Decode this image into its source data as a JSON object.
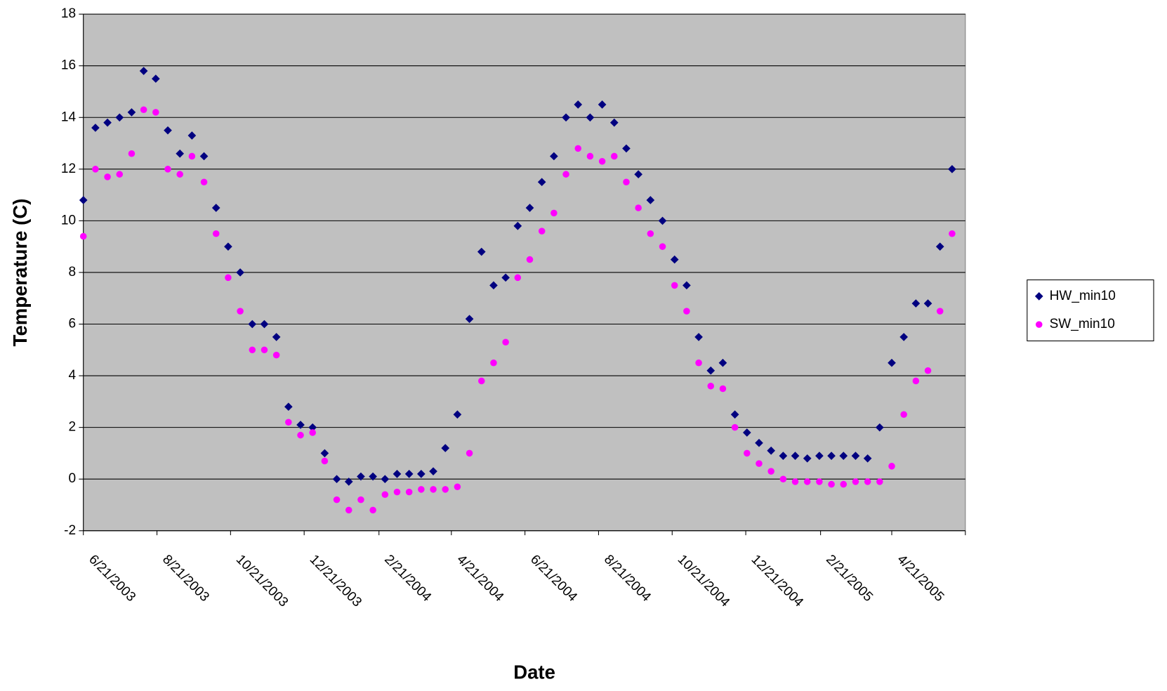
{
  "chart_data": {
    "type": "scatter",
    "x_label": "Date",
    "y_label": "Temperature (C)",
    "x": [
      "2003-06-21",
      "2003-07-01",
      "2003-07-11",
      "2003-07-21",
      "2003-07-31",
      "2003-08-10",
      "2003-08-20",
      "2003-08-30",
      "2003-09-09",
      "2003-09-19",
      "2003-09-29",
      "2003-10-09",
      "2003-10-19",
      "2003-10-29",
      "2003-11-08",
      "2003-11-18",
      "2003-11-28",
      "2003-12-08",
      "2003-12-18",
      "2003-12-28",
      "2004-01-07",
      "2004-01-17",
      "2004-01-27",
      "2004-02-06",
      "2004-02-16",
      "2004-02-26",
      "2004-03-07",
      "2004-03-17",
      "2004-03-27",
      "2004-04-06",
      "2004-04-16",
      "2004-04-26",
      "2004-05-06",
      "2004-05-16",
      "2004-05-26",
      "2004-06-05",
      "2004-06-15",
      "2004-06-25",
      "2004-07-05",
      "2004-07-15",
      "2004-07-25",
      "2004-08-04",
      "2004-08-14",
      "2004-08-24",
      "2004-09-03",
      "2004-09-13",
      "2004-09-23",
      "2004-10-03",
      "2004-10-13",
      "2004-10-23",
      "2004-11-02",
      "2004-11-12",
      "2004-11-22",
      "2004-12-02",
      "2004-12-12",
      "2004-12-22",
      "2005-01-01",
      "2005-01-11",
      "2005-01-21",
      "2005-01-31",
      "2005-02-10",
      "2005-02-20",
      "2005-03-02",
      "2005-03-12",
      "2005-03-22",
      "2005-04-01",
      "2005-04-11",
      "2005-04-21",
      "2005-05-01",
      "2005-05-11",
      "2005-05-21",
      "2005-05-31",
      "2005-06-10"
    ],
    "series": [
      {
        "name": "HW_min10",
        "color": "#000080",
        "marker": "diamond",
        "values": [
          10.8,
          13.6,
          13.8,
          14.0,
          14.2,
          15.8,
          15.5,
          13.5,
          12.6,
          13.3,
          12.5,
          10.5,
          9.0,
          8.0,
          6.0,
          6.0,
          5.5,
          2.8,
          2.1,
          2.0,
          1.0,
          0.0,
          -0.1,
          0.1,
          0.1,
          0.0,
          0.2,
          0.2,
          0.2,
          0.3,
          1.2,
          2.5,
          6.2,
          8.8,
          7.5,
          7.8,
          9.8,
          10.5,
          11.5,
          12.5,
          14.0,
          14.5,
          14.0,
          14.5,
          13.8,
          12.8,
          11.8,
          10.8,
          10.0,
          8.5,
          7.5,
          5.5,
          4.2,
          4.5,
          2.5,
          1.8,
          1.4,
          1.1,
          0.9,
          0.9,
          0.8,
          0.9,
          0.9,
          0.9,
          0.9,
          0.8,
          2.0,
          4.5,
          5.5,
          6.8,
          6.8,
          9.0,
          12.0
        ]
      },
      {
        "name": "SW_min10",
        "color": "#ff00ff",
        "marker": "circle",
        "values": [
          9.4,
          12.0,
          11.7,
          11.8,
          12.6,
          14.3,
          14.2,
          12.0,
          11.8,
          12.5,
          11.5,
          9.5,
          7.8,
          6.5,
          5.0,
          5.0,
          4.8,
          2.2,
          1.7,
          1.8,
          0.7,
          -0.8,
          -1.2,
          -0.8,
          -1.2,
          -0.6,
          -0.5,
          -0.5,
          -0.4,
          -0.4,
          -0.4,
          -0.3,
          1.0,
          3.8,
          4.5,
          5.3,
          7.8,
          8.5,
          9.6,
          10.3,
          11.8,
          12.8,
          12.5,
          12.3,
          12.5,
          11.5,
          10.5,
          9.5,
          9.0,
          7.5,
          6.5,
          4.5,
          3.6,
          3.5,
          2.0,
          1.0,
          0.6,
          0.3,
          0.0,
          -0.1,
          -0.1,
          -0.1,
          -0.2,
          -0.2,
          -0.1,
          -0.1,
          -0.1,
          0.5,
          2.5,
          3.8,
          4.2,
          6.5,
          9.5
        ]
      }
    ],
    "xlim": [
      "2003-06-21",
      "2005-06-21"
    ],
    "xticks": [
      {
        "value": "2003-06-21",
        "label": "6/21/2003"
      },
      {
        "value": "2003-08-21",
        "label": "8/21/2003"
      },
      {
        "value": "2003-10-21",
        "label": "10/21/2003"
      },
      {
        "value": "2003-12-21",
        "label": "12/21/2003"
      },
      {
        "value": "2004-02-21",
        "label": "2/21/2004"
      },
      {
        "value": "2004-04-21",
        "label": "4/21/2004"
      },
      {
        "value": "2004-06-21",
        "label": "6/21/2004"
      },
      {
        "value": "2004-08-21",
        "label": "8/21/2004"
      },
      {
        "value": "2004-10-21",
        "label": "10/21/2004"
      },
      {
        "value": "2004-12-21",
        "label": "12/21/2004"
      },
      {
        "value": "2005-02-21",
        "label": "2/21/2005"
      },
      {
        "value": "2005-04-21",
        "label": "4/21/2005"
      }
    ],
    "ylim": [
      -2,
      18
    ],
    "yticks": [
      -2,
      0,
      2,
      4,
      6,
      8,
      10,
      12,
      14,
      16,
      18
    ],
    "grid": true,
    "legend": "right",
    "plot_background": "#c0c0c0"
  }
}
